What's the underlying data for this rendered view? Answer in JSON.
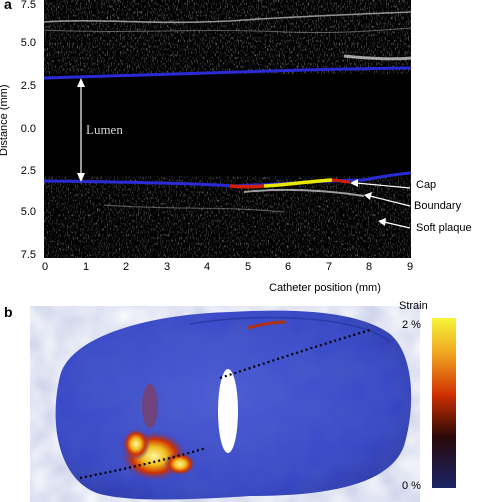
{
  "panel_a": {
    "label": "a",
    "y_axis_title": "Distance (mm)",
    "x_axis_title": "Catheter position (mm)",
    "y_ticks": [
      "7.5",
      "5.0",
      "2.5",
      "0.0",
      "2.5",
      "5.0",
      "7.5"
    ],
    "x_ticks": [
      "0",
      "1",
      "2",
      "3",
      "4",
      "5",
      "6",
      "7",
      "8",
      "9"
    ],
    "lumen_label": "Lumen",
    "annotations": [
      "Cap",
      "Boundary",
      "Soft plaque"
    ]
  },
  "panel_b": {
    "label": "b",
    "colorbar_title": "Strain",
    "colorbar_max": "2 %",
    "colorbar_min": "0 %"
  },
  "colors": {
    "vessel_wall": "#2b2bd6",
    "cap_yellow": "#e8e800",
    "cap_red": "#d02000",
    "cylinder_blue": "#3545c8"
  }
}
